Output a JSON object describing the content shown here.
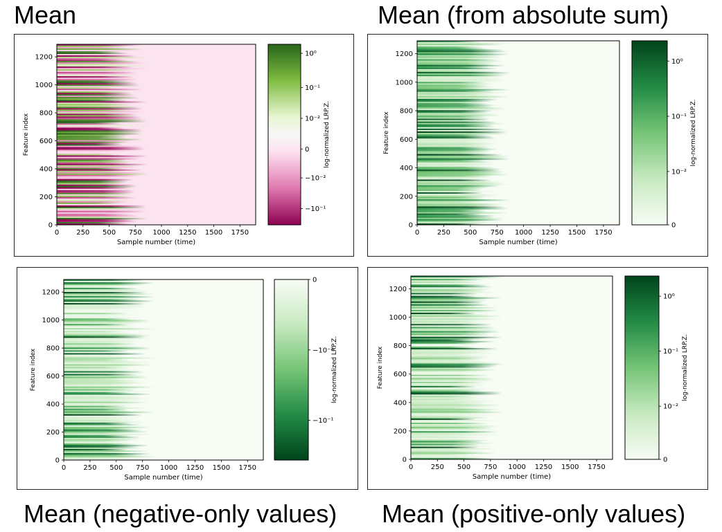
{
  "titles": {
    "top_left": "Mean",
    "top_right": "Mean (from absolute sum)",
    "bottom_left": "Mean (negative-only values)",
    "bottom_right": "Mean (positive-only values)"
  },
  "colors": {
    "diverging_neg": "#8e0152",
    "diverging_pos": "#276419",
    "greens_dark": "#00441b",
    "greens_light": "#f7fcf5"
  },
  "chart_data": [
    {
      "type": "heatmap",
      "title": "Mean",
      "xlabel": "Sample number (time)",
      "ylabel": "Feature index",
      "x_ticks": [
        "0",
        "250",
        "500",
        "750",
        "1000",
        "1250",
        "1500",
        "1750"
      ],
      "y_ticks": [
        "0",
        "200",
        "400",
        "600",
        "800",
        "1000",
        "1200"
      ],
      "xlim": [
        0,
        1900
      ],
      "ylim": [
        0,
        1290
      ],
      "signal_extent_x": 800,
      "colormap": "PiYG",
      "colorbar_label": "log-normalized LRP.Z.",
      "colorbar_ticks": [
        "10⁰",
        "10⁻¹",
        "10⁻²",
        "0",
        "−10⁻²",
        "−10⁻¹"
      ]
    },
    {
      "type": "heatmap",
      "title": "Mean (from absolute sum)",
      "xlabel": "Sample number (time)",
      "ylabel": "Feature index",
      "x_ticks": [
        "0",
        "250",
        "500",
        "750",
        "1000",
        "1250",
        "1500",
        "1750"
      ],
      "y_ticks": [
        "0",
        "200",
        "400",
        "600",
        "800",
        "1000",
        "1200"
      ],
      "xlim": [
        0,
        1900
      ],
      "ylim": [
        0,
        1290
      ],
      "signal_extent_x": 800,
      "colormap": "Greens",
      "colorbar_label": "log-normalized LRP.Z.",
      "colorbar_ticks": [
        "10⁰",
        "10⁻¹",
        "10⁻²",
        "0"
      ]
    },
    {
      "type": "heatmap",
      "title": "Mean (negative-only values)",
      "xlabel": "Sample number (time)",
      "ylabel": "Feature index",
      "x_ticks": [
        "0",
        "250",
        "500",
        "750",
        "1000",
        "1250",
        "1500",
        "1750"
      ],
      "y_ticks": [
        "0",
        "200",
        "400",
        "600",
        "800",
        "1000",
        "1200"
      ],
      "xlim": [
        0,
        1900
      ],
      "ylim": [
        0,
        1290
      ],
      "signal_extent_x": 800,
      "colormap": "Greens (reversed)",
      "colorbar_label": "log-normalized LRP.Z.",
      "colorbar_ticks": [
        "0",
        "−10⁻²",
        "−10⁻¹"
      ]
    },
    {
      "type": "heatmap",
      "title": "Mean (positive-only values)",
      "xlabel": "Sample number (time)",
      "ylabel": "Feature index",
      "x_ticks": [
        "0",
        "250",
        "500",
        "750",
        "1000",
        "1250",
        "1500",
        "1750"
      ],
      "y_ticks": [
        "0",
        "200",
        "400",
        "600",
        "800",
        "1000",
        "1200"
      ],
      "xlim": [
        0,
        1900
      ],
      "ylim": [
        0,
        1290
      ],
      "signal_extent_x": 800,
      "colormap": "Greens",
      "colorbar_label": "log-normalized LRP.Z.",
      "colorbar_ticks": [
        "10⁰",
        "10⁻¹",
        "10⁻²",
        "0"
      ]
    }
  ]
}
